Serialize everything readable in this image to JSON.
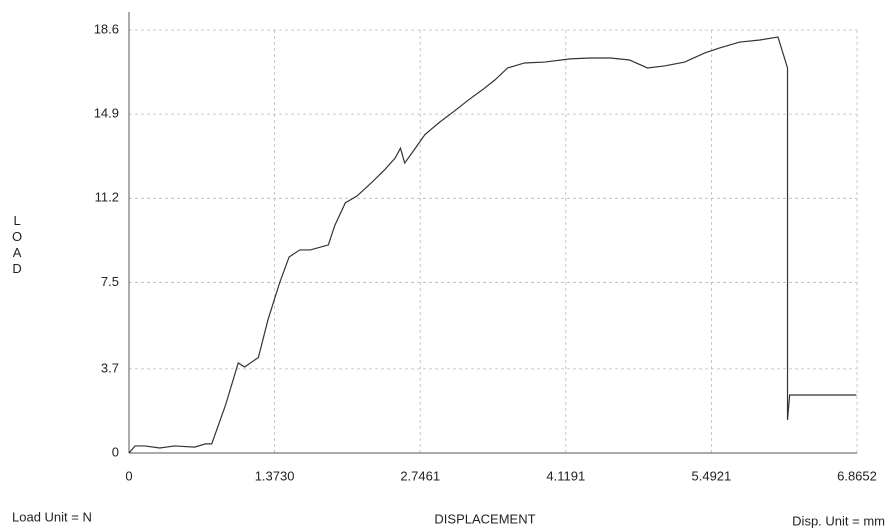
{
  "chart_data": {
    "type": "line",
    "x_label": "DISPLACEMENT",
    "y_label": "LOAD",
    "annotations": [
      "Load Unit = N",
      "Disp. Unit = mm"
    ],
    "x": [
      0,
      0.057,
      0.15,
      0.29,
      0.43,
      0.62,
      0.72,
      0.78,
      0.91,
      1.03,
      1.09,
      1.22,
      1.31,
      1.42,
      1.51,
      1.61,
      1.71,
      1.88,
      1.94,
      2.04,
      2.15,
      2.29,
      2.41,
      2.51,
      2.56,
      2.6,
      2.7,
      2.79,
      2.93,
      3.07,
      3.2,
      3.33,
      3.45,
      3.57,
      3.73,
      3.92,
      4.16,
      4.35,
      4.54,
      4.72,
      4.89,
      5.05,
      5.24,
      5.43,
      5.57,
      5.76,
      5.95,
      6.12,
      6.21,
      6.21,
      6.23,
      6.86
    ],
    "series": [
      {
        "color": "#333333",
        "values": [
          0,
          0.31,
          0.31,
          0.22,
          0.31,
          0.26,
          0.4,
          0.4,
          2.1,
          3.96,
          3.78,
          4.2,
          5.85,
          7.48,
          8.62,
          8.93,
          8.93,
          9.15,
          10.0,
          11.0,
          11.3,
          11.9,
          12.45,
          12.97,
          13.4,
          12.75,
          13.4,
          14.0,
          14.55,
          15.04,
          15.52,
          15.96,
          16.4,
          16.93,
          17.15,
          17.19,
          17.33,
          17.37,
          17.37,
          17.28,
          16.93,
          17.02,
          17.19,
          17.59,
          17.81,
          18.07,
          18.16,
          18.29,
          16.93,
          1.45,
          2.55,
          2.55
        ]
      }
    ],
    "xlim": [
      0,
      6.8652
    ],
    "xticks": [
      0,
      {
        "value": 1.373,
        "label": "1.3730"
      },
      2.7461,
      4.1191,
      5.4921,
      6.8652
    ],
    "ylim": [
      0,
      18.6
    ],
    "yticks": [
      0,
      3.7,
      7.5,
      11.2,
      14.9,
      18.6
    ],
    "grid": true
  }
}
